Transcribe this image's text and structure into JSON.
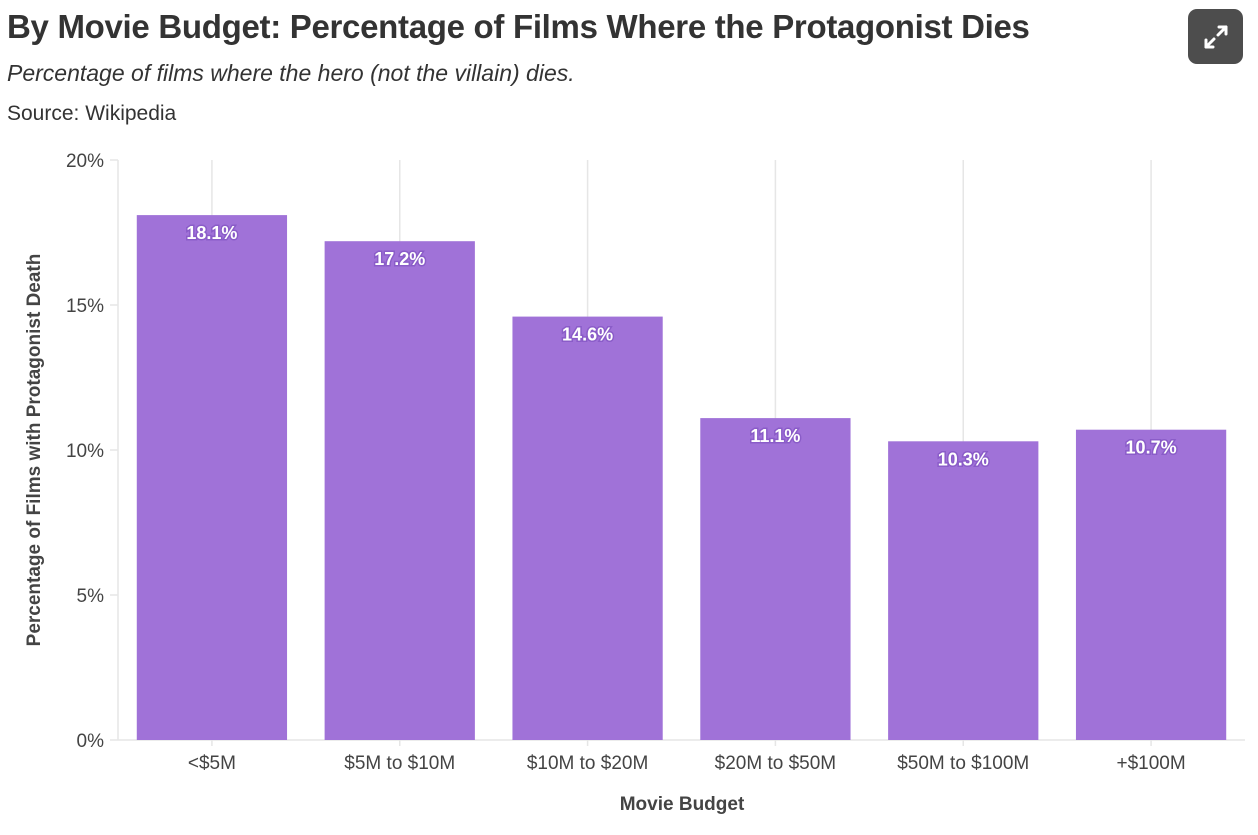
{
  "header": {
    "title": "By Movie Budget: Percentage of Films Where the Protagonist Dies",
    "subtitle": "Percentage of films where the hero (not the villain) dies.",
    "source": "Source: Wikipedia",
    "expand_icon": "expand-arrows-icon"
  },
  "colors": {
    "bar": "#a072d8",
    "grid": "#e6e6e6",
    "text": "#333333",
    "button_bg": "#4d4d4d"
  },
  "chart_data": {
    "type": "bar",
    "title": "By Movie Budget: Percentage of Films Where the Protagonist Dies",
    "subtitle": "Percentage of films where the hero (not the villain) dies.",
    "xlabel": "Movie Budget",
    "ylabel": "Percentage of Films with Protagonist Death",
    "categories": [
      "<$5M",
      "$5M to $10M",
      "$10M to $20M",
      "$20M to $50M",
      "$50M to $100M",
      "+$100M"
    ],
    "values": [
      18.1,
      17.2,
      14.6,
      11.1,
      10.3,
      10.7
    ],
    "value_labels": [
      "18.1%",
      "17.2%",
      "14.6%",
      "11.1%",
      "10.3%",
      "10.7%"
    ],
    "ylim": [
      0,
      20
    ],
    "yticks": [
      0,
      5,
      10,
      15,
      20
    ],
    "ytick_labels": [
      "0%",
      "5%",
      "10%",
      "15%",
      "20%"
    ],
    "grid": true,
    "legend": "none"
  }
}
